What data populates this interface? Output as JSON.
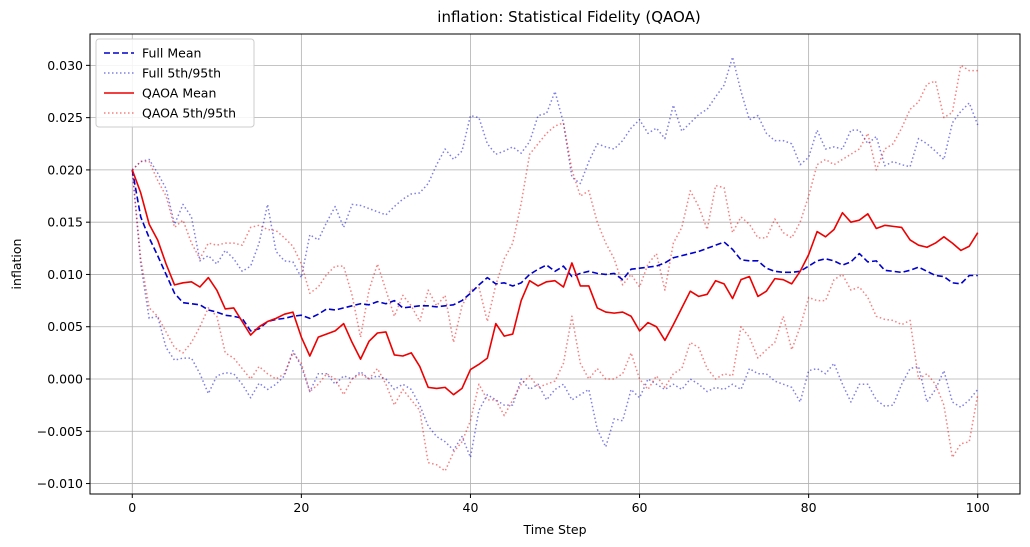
{
  "chart_data": {
    "type": "line",
    "title": "inflation: Statistical Fidelity (QAOA)",
    "xlabel": "Time Step",
    "ylabel": "inflation",
    "xlim": [
      -5,
      105
    ],
    "ylim": [
      -0.011,
      0.033
    ],
    "xticks": [
      0,
      20,
      40,
      60,
      80,
      100
    ],
    "xtick_labels": [
      "0",
      "20",
      "40",
      "60",
      "80",
      "100"
    ],
    "yticks": [
      -0.01,
      -0.005,
      0,
      0.005,
      0.01,
      0.015,
      0.02,
      0.025,
      0.03
    ],
    "ytick_labels": [
      "−0.010",
      "−0.005",
      "0.000",
      "0.005",
      "0.010",
      "0.015",
      "0.020",
      "0.025",
      "0.030"
    ],
    "grid": true,
    "legend_position": "upper-left",
    "x_step": 1,
    "series": [
      {
        "name": "Full Mean",
        "color": "#0000cc",
        "style": "dashed",
        "alpha": 1.0,
        "values": [
          0.02,
          0.0155,
          0.0135,
          0.0118,
          0.01,
          0.0082,
          0.0073,
          0.0072,
          0.0071,
          0.0066,
          0.0064,
          0.0061,
          0.006,
          0.0058,
          0.0046,
          0.0048,
          0.0055,
          0.0057,
          0.0058,
          0.006,
          0.0061,
          0.0058,
          0.0062,
          0.0067,
          0.0066,
          0.0068,
          0.007,
          0.0072,
          0.0071,
          0.0074,
          0.0072,
          0.0075,
          0.0068,
          0.0069,
          0.007,
          0.007,
          0.0069,
          0.007,
          0.0071,
          0.0075,
          0.0082,
          0.009,
          0.0097,
          0.0091,
          0.0092,
          0.0089,
          0.0092,
          0.01,
          0.0105,
          0.0109,
          0.0103,
          0.0108,
          0.0098,
          0.0101,
          0.0103,
          0.0101,
          0.01,
          0.0101,
          0.0095,
          0.0105,
          0.0106,
          0.0107,
          0.0108,
          0.0111,
          0.0116,
          0.0118,
          0.012,
          0.0122,
          0.0125,
          0.0128,
          0.0131,
          0.0124,
          0.0114,
          0.0113,
          0.0113,
          0.0106,
          0.0103,
          0.0102,
          0.0102,
          0.0103,
          0.0108,
          0.0113,
          0.0115,
          0.0113,
          0.0109,
          0.0112,
          0.012,
          0.0112,
          0.0113,
          0.0104,
          0.0103,
          0.0102,
          0.0104,
          0.0107,
          0.0103,
          0.0099,
          0.0098,
          0.0092,
          0.0091,
          0.0099,
          0.0099
        ]
      },
      {
        "name": "Full 5th/95th",
        "color": "#0000cc",
        "style": "dotted",
        "alpha": 0.5,
        "values": [
          0.02,
          0.0208,
          0.021,
          0.0197,
          0.0182,
          0.0148,
          0.0167,
          0.0155,
          0.0113,
          0.0118,
          0.011,
          0.0123,
          0.0115,
          0.0103,
          0.0108,
          0.013,
          0.0167,
          0.0122,
          0.0113,
          0.0112,
          0.0097,
          0.0138,
          0.0133,
          0.015,
          0.0165,
          0.0145,
          0.0167,
          0.0166,
          0.0163,
          0.016,
          0.0157,
          0.0165,
          0.0172,
          0.0177,
          0.0178,
          0.0187,
          0.0205,
          0.022,
          0.021,
          0.0218,
          0.0252,
          0.025,
          0.0225,
          0.0215,
          0.0218,
          0.0222,
          0.0216,
          0.0227,
          0.0252,
          0.0254,
          0.0275,
          0.0245,
          0.0193,
          0.0187,
          0.0208,
          0.0225,
          0.0222,
          0.022,
          0.0228,
          0.024,
          0.0248,
          0.0235,
          0.024,
          0.023,
          0.0262,
          0.0237,
          0.0245,
          0.0253,
          0.0258,
          0.027,
          0.0281,
          0.0308,
          0.0275,
          0.0248,
          0.0252,
          0.0235,
          0.0228,
          0.0228,
          0.0225,
          0.0205,
          0.0212,
          0.0238,
          0.022,
          0.0222,
          0.022,
          0.0238,
          0.0238,
          0.0225,
          0.0232,
          0.0204,
          0.0208,
          0.0205,
          0.0203,
          0.023,
          0.0225,
          0.0218,
          0.021,
          0.0245,
          0.0256,
          0.0264,
          0.0243
        ]
      },
      {
        "name": "QAOA Mean",
        "color": "#ee0000",
        "style": "solid",
        "alpha": 1.0,
        "values": [
          0.02,
          0.0178,
          0.0148,
          0.0133,
          0.011,
          0.009,
          0.0092,
          0.0093,
          0.0088,
          0.0097,
          0.0085,
          0.0067,
          0.0068,
          0.0055,
          0.0042,
          0.005,
          0.0055,
          0.0058,
          0.0062,
          0.0064,
          0.004,
          0.0022,
          0.004,
          0.0043,
          0.0046,
          0.0053,
          0.0035,
          0.0019,
          0.0036,
          0.0044,
          0.0045,
          0.0023,
          0.0022,
          0.0025,
          0.0012,
          -0.0008,
          -0.0009,
          -0.0008,
          -0.0015,
          -0.0009,
          0.0009,
          0.0014,
          0.002,
          0.0053,
          0.0041,
          0.0043,
          0.0075,
          0.0094,
          0.0089,
          0.0093,
          0.0094,
          0.0088,
          0.0111,
          0.0089,
          0.0089,
          0.0068,
          0.0064,
          0.0063,
          0.0064,
          0.006,
          0.0046,
          0.0054,
          0.005,
          0.0037,
          0.0052,
          0.0068,
          0.0084,
          0.0079,
          0.0081,
          0.0094,
          0.0091,
          0.0077,
          0.0095,
          0.0098,
          0.0079,
          0.0084,
          0.0096,
          0.0095,
          0.0091,
          0.0103,
          0.0119,
          0.0141,
          0.0136,
          0.0143,
          0.0159,
          0.015,
          0.0152,
          0.0158,
          0.0144,
          0.0147,
          0.0146,
          0.0145,
          0.0133,
          0.0128,
          0.0126,
          0.013,
          0.0136,
          0.013,
          0.0123,
          0.0127,
          0.014
        ]
      },
      {
        "name": "QAOA 5th/95th",
        "color": "#ee0000",
        "style": "dotted",
        "alpha": 0.5,
        "values": [
          0.02,
          0.0208,
          0.0208,
          0.019,
          0.0175,
          0.0145,
          0.0152,
          0.013,
          0.0115,
          0.013,
          0.0128,
          0.013,
          0.013,
          0.0128,
          0.0145,
          0.0147,
          0.0143,
          0.0142,
          0.0135,
          0.0127,
          0.011,
          0.0082,
          0.0088,
          0.01,
          0.0108,
          0.0108,
          0.008,
          0.004,
          0.0085,
          0.011,
          0.0085,
          0.006,
          0.008,
          0.007,
          0.0055,
          0.0085,
          0.007,
          0.008,
          0.0035,
          0.007,
          0.0085,
          0.0088,
          0.0055,
          0.009,
          0.0115,
          0.013,
          0.0168,
          0.0215,
          0.0225,
          0.0235,
          0.0242,
          0.0245,
          0.02,
          0.0175,
          0.018,
          0.015,
          0.013,
          0.0115,
          0.009,
          0.01,
          0.0088,
          0.011,
          0.012,
          0.0085,
          0.013,
          0.0145,
          0.018,
          0.0165,
          0.0143,
          0.0185,
          0.0183,
          0.014,
          0.0155,
          0.0148,
          0.0135,
          0.0135,
          0.0153,
          0.014,
          0.0135,
          0.015,
          0.0175,
          0.0205,
          0.021,
          0.0205,
          0.021,
          0.0215,
          0.022,
          0.0235,
          0.02,
          0.022,
          0.0225,
          0.024,
          0.0258,
          0.0265,
          0.0282,
          0.0285,
          0.025,
          0.0255,
          0.03,
          0.0295,
          0.0295
        ]
      },
      {
        "name": "Full 5th/95th (lower)",
        "color": "#0000cc",
        "style": "dotted",
        "alpha": 0.5,
        "values": [
          0.02,
          0.011,
          0.0058,
          0.006,
          0.003,
          0.0018,
          0.002,
          0.002,
          0.0005,
          -0.0014,
          0.0003,
          0.0006,
          0.0005,
          -0.0005,
          -0.0018,
          -0.0004,
          -0.001,
          -0.0005,
          0.0003,
          0.0027,
          0.0012,
          -0.0012,
          0.0005,
          0.0005,
          -0.0005,
          0.0003,
          0.0,
          0.0007,
          0.0,
          0.0003,
          0.0,
          -0.001,
          -0.0005,
          -0.001,
          -0.0025,
          -0.0045,
          -0.0055,
          -0.006,
          -0.0068,
          -0.0055,
          -0.0075,
          -0.003,
          -0.0015,
          -0.002,
          -0.0025,
          -0.0025,
          0.0,
          -0.001,
          -0.0005,
          -0.002,
          -0.001,
          -0.0005,
          -0.002,
          -0.0015,
          -0.001,
          -0.0048,
          -0.0065,
          -0.0038,
          -0.004,
          -0.001,
          -0.0018,
          0.0,
          -0.0005,
          -0.001,
          -0.0005,
          -0.001,
          0.0,
          -0.0005,
          -0.0012,
          -0.0008,
          -0.001,
          -0.0005,
          -0.001,
          0.001,
          0.0005,
          0.0005,
          -0.0002,
          -0.0005,
          -0.0008,
          -0.0022,
          0.0008,
          0.001,
          0.0005,
          0.0015,
          -0.0005,
          -0.0022,
          -0.0005,
          -0.0005,
          -0.002,
          -0.0026,
          -0.0025,
          -0.0005,
          0.001,
          0.0012,
          -0.0022,
          -0.001,
          0.0008,
          -0.0022,
          -0.0027,
          -0.002,
          -0.001
        ]
      },
      {
        "name": "QAOA 5th/95th (lower)",
        "color": "#ee0000",
        "style": "dotted",
        "alpha": 0.5,
        "values": [
          0.02,
          0.0115,
          0.0068,
          0.006,
          0.0045,
          0.003,
          0.0025,
          0.0035,
          0.005,
          0.0068,
          0.006,
          0.0025,
          0.002,
          0.001,
          0.0,
          0.0012,
          0.0005,
          0.0,
          0.0005,
          0.0025,
          0.0015,
          -0.0012,
          -0.0005,
          0.0005,
          0.0,
          -0.0015,
          0.0,
          0.0005,
          0.0,
          0.001,
          -0.0005,
          -0.0025,
          -0.001,
          -0.002,
          -0.003,
          -0.008,
          -0.0082,
          -0.0088,
          -0.007,
          -0.006,
          -0.004,
          -0.0005,
          -0.002,
          -0.002,
          -0.0035,
          -0.002,
          -0.0005,
          0.0003,
          -0.0008,
          -0.0005,
          -0.0002,
          0.0015,
          0.006,
          0.0015,
          0.0,
          0.001,
          0.0,
          0.0,
          0.0005,
          0.0025,
          0.0,
          -0.001,
          0.0003,
          -0.0008,
          0.0005,
          0.001,
          0.0035,
          0.003,
          0.001,
          0.0,
          0.0005,
          0.0003,
          0.005,
          0.004,
          0.002,
          0.0028,
          0.0035,
          0.006,
          0.0028,
          0.005,
          0.0078,
          0.0075,
          0.0075,
          0.0095,
          0.01,
          0.0085,
          0.0088,
          0.0078,
          0.006,
          0.0057,
          0.0056,
          0.0052,
          0.0056,
          0.0,
          0.0005,
          -0.0005,
          -0.0025,
          -0.0075,
          -0.0062,
          -0.006,
          -0.0015
        ]
      }
    ],
    "legend": [
      {
        "label": "Full Mean",
        "color": "#0000cc",
        "style": "dashed",
        "alpha": 1.0
      },
      {
        "label": "Full 5th/95th",
        "color": "#0000cc",
        "style": "dotted",
        "alpha": 0.5
      },
      {
        "label": "QAOA Mean",
        "color": "#ee0000",
        "style": "solid",
        "alpha": 1.0
      },
      {
        "label": "QAOA 5th/95th",
        "color": "#ee0000",
        "style": "dotted",
        "alpha": 0.5
      }
    ]
  }
}
